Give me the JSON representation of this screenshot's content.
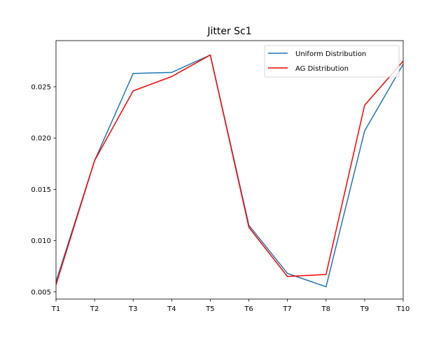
{
  "chart_data": {
    "type": "line",
    "title": "Jitter Sc1",
    "xlabel": "",
    "ylabel": "",
    "categories": [
      "T1",
      "T2",
      "T3",
      "T4",
      "T5",
      "T6",
      "T7",
      "T8",
      "T9",
      "T10"
    ],
    "y_ticks": [
      "0.005",
      "0.010",
      "0.015",
      "0.020",
      "0.025"
    ],
    "ylim": [
      0.0043,
      0.0295
    ],
    "grid": false,
    "legend_position": "top-right",
    "series": [
      {
        "name": "Uniform Distribution",
        "color": "#1f77b4",
        "values": [
          0.006,
          0.0178,
          0.0263,
          0.0264,
          0.0281,
          0.0115,
          0.0068,
          0.0055,
          0.0207,
          0.0272
        ]
      },
      {
        "name": "AG Distribution",
        "color": "#ff0000",
        "values": [
          0.0057,
          0.0178,
          0.0246,
          0.026,
          0.0281,
          0.0113,
          0.0065,
          0.0067,
          0.0232,
          0.0275
        ]
      }
    ]
  }
}
